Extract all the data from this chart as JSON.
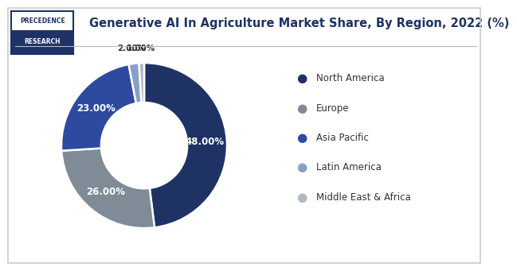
{
  "title": "Generative AI In Agriculture Market Share, By Region, 2022 (%)",
  "labels": [
    "North America",
    "Europe",
    "Asia Pacific",
    "Latin America",
    "Middle East & Africa"
  ],
  "values": [
    48.0,
    26.0,
    23.0,
    2.0,
    1.0
  ],
  "pct_labels": [
    "48.00%",
    "26.00%",
    "23.00%",
    "2.00%",
    "1.00%"
  ],
  "wedge_colors": [
    "#1e3264",
    "#7f8b96",
    "#2e4a9e",
    "#8b9ec8",
    "#b0b8c1"
  ],
  "legend_colors": [
    "#1e3264",
    "#7f8b96",
    "#2e4a9e",
    "#8b9ec8",
    "#b0b8c1"
  ],
  "bg_color": "#ffffff",
  "title_color": "#1e3264",
  "title_fontsize": 10.5,
  "label_color_inside": "#ffffff",
  "label_color_outside": "#333333",
  "separator_color": "#b0b8c8",
  "logo_bg": "#1e3264",
  "logo_border": "#1e3264",
  "logo_text1": "PRECEDENCE",
  "logo_text2": "RESEARCH"
}
